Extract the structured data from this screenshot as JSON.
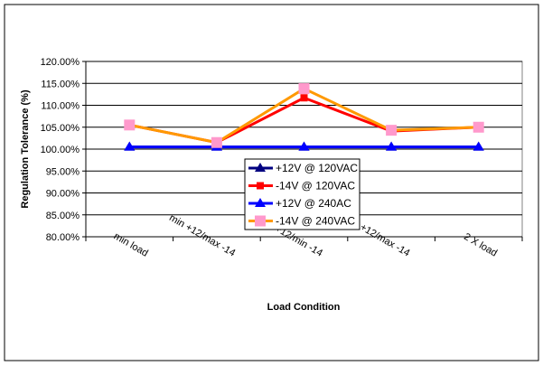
{
  "chart_data": {
    "type": "line",
    "title": "",
    "xlabel": "Load Condition",
    "ylabel": "Regulation Tolerance (%)",
    "ylim": [
      80,
      120
    ],
    "ytick_step": 5,
    "ytick_labels": [
      "80.00%",
      "85.00%",
      "90.00%",
      "95.00%",
      "100.00%",
      "105.00%",
      "110.00%",
      "115.00%",
      "120.00%"
    ],
    "categories": [
      "min load",
      "min +12/max -14",
      "max +12/min -14",
      "max +12/max -14",
      "2 X load"
    ],
    "grid": "horizontal",
    "legend_position": "center-bottom",
    "series": [
      {
        "name": "+12V @ 120VAC",
        "color": "#000080",
        "marker": "triangle",
        "values": [
          100.5,
          100.5,
          100.5,
          100.5,
          100.5
        ]
      },
      {
        "name": "-14V @ 120VAC",
        "color": "#FF0000",
        "marker": "square",
        "values": [
          105.5,
          101.5,
          111.7,
          104.1,
          105.0
        ]
      },
      {
        "name": "+12V @ 240AC",
        "color": "#0000FF",
        "marker": "triangle",
        "values": [
          100.5,
          100.5,
          100.5,
          100.5,
          100.5
        ]
      },
      {
        "name": "-14V @ 240VAC",
        "color": "#FF9900",
        "marker_color": "#FF99CC",
        "marker": "square",
        "values": [
          105.5,
          101.5,
          113.8,
          104.3,
          105.0
        ]
      }
    ]
  }
}
